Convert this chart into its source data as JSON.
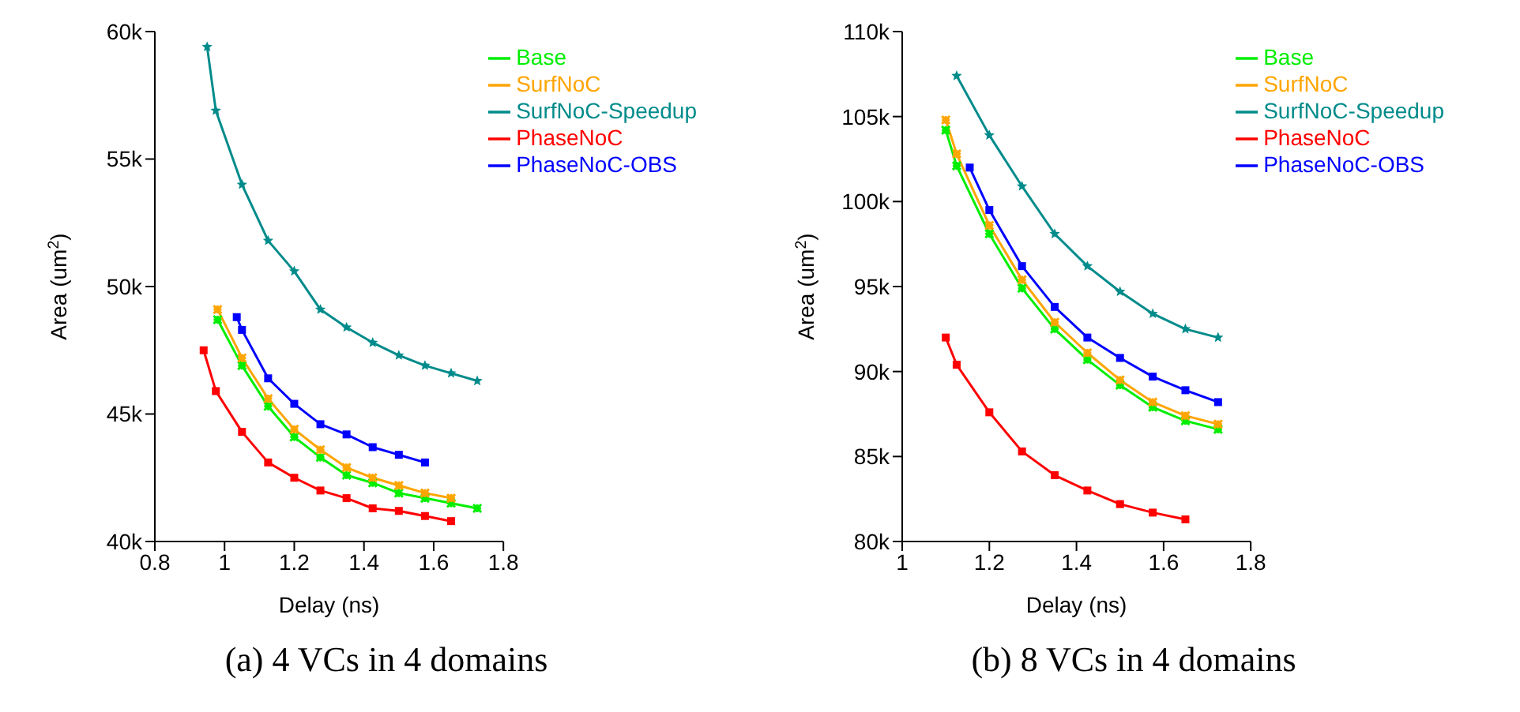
{
  "chart_data": [
    {
      "type": "line",
      "title": "(a) 4 VCs in 4 domains",
      "xlabel": "Delay (ns)",
      "ylabel": "Area (um$^{2}$)",
      "xlim": [
        0.8,
        1.8
      ],
      "xticks": [
        0.8,
        1,
        1.2,
        1.4,
        1.6,
        1.8
      ],
      "ylim": [
        40000,
        60000
      ],
      "yticks": [
        {
          "value": 40000,
          "label": "40k"
        },
        {
          "value": 45000,
          "label": "45k"
        },
        {
          "value": 50000,
          "label": "50k"
        },
        {
          "value": 55000,
          "label": "55k"
        },
        {
          "value": 60000,
          "label": "60k"
        }
      ],
      "legend": "top right",
      "grid": false,
      "line_style": "solid",
      "series": [
        {
          "name": "Base",
          "color": "#00ee00",
          "marker": "cross",
          "x": [
            0.98,
            1.05,
            1.125,
            1.2,
            1.275,
            1.35,
            1.425,
            1.5,
            1.575,
            1.65,
            1.725
          ],
          "values": [
            48700,
            46900,
            45300,
            44100,
            43300,
            42600,
            42300,
            41900,
            41700,
            41500,
            41300
          ]
        },
        {
          "name": "SurfNoC",
          "color": "#ffa500",
          "marker": "cross",
          "x": [
            0.98,
            1.05,
            1.125,
            1.2,
            1.275,
            1.35,
            1.425,
            1.5,
            1.575,
            1.65
          ],
          "values": [
            49100,
            47200,
            45600,
            44400,
            43600,
            42900,
            42500,
            42200,
            41900,
            41700
          ]
        },
        {
          "name": "SurfNoC-Speedup",
          "color": "#008b8b",
          "marker": "star",
          "x": [
            0.95,
            0.975,
            1.05,
            1.125,
            1.2,
            1.275,
            1.35,
            1.425,
            1.5,
            1.575,
            1.65,
            1.725
          ],
          "values": [
            59400,
            56900,
            54000,
            51800,
            50600,
            49100,
            48400,
            47800,
            47300,
            46900,
            46600,
            46300
          ]
        },
        {
          "name": "PhaseNoC",
          "color": "#ff0000",
          "marker": "square",
          "x": [
            0.94,
            0.975,
            1.05,
            1.125,
            1.2,
            1.275,
            1.35,
            1.425,
            1.5,
            1.575,
            1.65
          ],
          "values": [
            47500,
            45900,
            44300,
            43100,
            42500,
            42000,
            41700,
            41300,
            41200,
            41000,
            40800
          ]
        },
        {
          "name": "PhaseNoC-OBS",
          "color": "#0000ff",
          "marker": "square",
          "x": [
            1.035,
            1.05,
            1.125,
            1.2,
            1.275,
            1.35,
            1.425,
            1.5,
            1.575
          ],
          "values": [
            48800,
            48300,
            46400,
            45400,
            44600,
            44200,
            43700,
            43400,
            43100
          ]
        }
      ]
    },
    {
      "type": "line",
      "title": "(b) 8 VCs in 4 domains",
      "xlabel": "Delay (ns)",
      "ylabel": "Area (um$^{2}$)",
      "xlim": [
        1,
        1.8
      ],
      "xticks": [
        1,
        1.2,
        1.4,
        1.6,
        1.8
      ],
      "ylim": [
        80000,
        110000
      ],
      "yticks": [
        {
          "value": 80000,
          "label": "80k"
        },
        {
          "value": 85000,
          "label": "85k"
        },
        {
          "value": 90000,
          "label": "90k"
        },
        {
          "value": 95000,
          "label": "95k"
        },
        {
          "value": 100000,
          "label": "100k"
        },
        {
          "value": 105000,
          "label": "105k"
        },
        {
          "value": 110000,
          "label": "110k"
        }
      ],
      "legend": "top right",
      "grid": false,
      "line_style": "solid",
      "series": [
        {
          "name": "Base",
          "color": "#00ee00",
          "marker": "cross",
          "x": [
            1.1,
            1.125,
            1.2,
            1.275,
            1.35,
            1.425,
            1.5,
            1.575,
            1.65,
            1.725
          ],
          "values": [
            104200,
            102100,
            98100,
            94900,
            92500,
            90700,
            89200,
            87900,
            87100,
            86600
          ]
        },
        {
          "name": "SurfNoC",
          "color": "#ffa500",
          "marker": "cross",
          "x": [
            1.1,
            1.125,
            1.2,
            1.275,
            1.35,
            1.425,
            1.5,
            1.575,
            1.65,
            1.725
          ],
          "values": [
            104800,
            102800,
            98600,
            95400,
            92900,
            91100,
            89500,
            88200,
            87400,
            86900
          ]
        },
        {
          "name": "SurfNoC-Speedup",
          "color": "#008b8b",
          "marker": "star",
          "x": [
            1.125,
            1.2,
            1.275,
            1.35,
            1.425,
            1.5,
            1.575,
            1.65,
            1.725
          ],
          "values": [
            107400,
            103900,
            100900,
            98100,
            96200,
            94700,
            93400,
            92500,
            92000
          ]
        },
        {
          "name": "PhaseNoC",
          "color": "#ff0000",
          "marker": "square",
          "x": [
            1.1,
            1.125,
            1.2,
            1.275,
            1.35,
            1.425,
            1.5,
            1.575,
            1.65
          ],
          "values": [
            92000,
            90400,
            87600,
            85300,
            83900,
            83000,
            82200,
            81700,
            81300
          ]
        },
        {
          "name": "PhaseNoC-OBS",
          "color": "#0000ff",
          "marker": "square",
          "x": [
            1.155,
            1.2,
            1.275,
            1.35,
            1.425,
            1.5,
            1.575,
            1.65,
            1.725
          ],
          "values": [
            102000,
            99500,
            96200,
            93800,
            92000,
            90800,
            89700,
            88900,
            88200
          ]
        }
      ]
    }
  ]
}
